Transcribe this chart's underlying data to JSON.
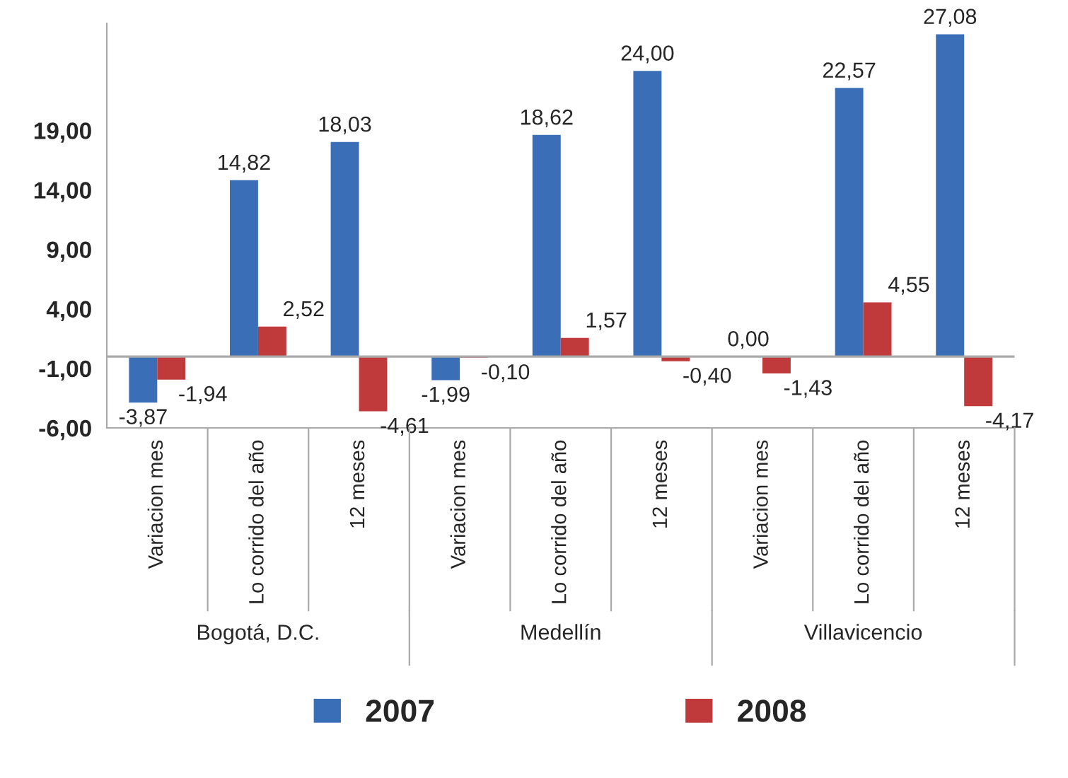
{
  "chart_data": {
    "type": "bar",
    "categories": [
      "Variacion mes",
      "Lo corrido del año",
      "12 meses",
      "Variacion mes",
      "Lo corrido del año",
      "12 meses",
      "Variacion mes",
      "Lo corrido del año",
      "12 meses"
    ],
    "series": [
      {
        "name": "2007",
        "color": "#3a6fb8",
        "values": [
          -3.87,
          14.82,
          18.03,
          -1.99,
          18.62,
          24.0,
          0.0,
          22.57,
          27.08
        ],
        "value_labels": [
          "-3,87",
          "14,82",
          "18,03",
          "-1,99",
          "18,62",
          "24,00",
          "0,00",
          "22,57",
          "27,08"
        ]
      },
      {
        "name": "2008",
        "color": "#c0393b",
        "values": [
          -1.94,
          2.52,
          -4.61,
          -0.1,
          1.57,
          -0.4,
          -1.43,
          4.55,
          -4.17
        ],
        "value_labels": [
          "-1,94",
          "2,52",
          "-4,61",
          "-0,10",
          "1,57",
          "-0,40",
          "-1,43",
          "4,55",
          "-4,17"
        ]
      }
    ],
    "ylim": [
      -6,
      28
    ],
    "yticks": [
      {
        "value": -6,
        "label": "-6,00"
      },
      {
        "value": -1,
        "label": "-1,00"
      },
      {
        "value": 4,
        "label": "4,00"
      },
      {
        "value": 9,
        "label": "9,00"
      },
      {
        "value": 14,
        "label": "14,00"
      },
      {
        "value": 19,
        "label": "19,00"
      }
    ],
    "annotations": [
      "Bogotá, D.C.",
      "Medellín",
      "Villavicencio"
    ],
    "grid": false,
    "legend": "bottom"
  }
}
